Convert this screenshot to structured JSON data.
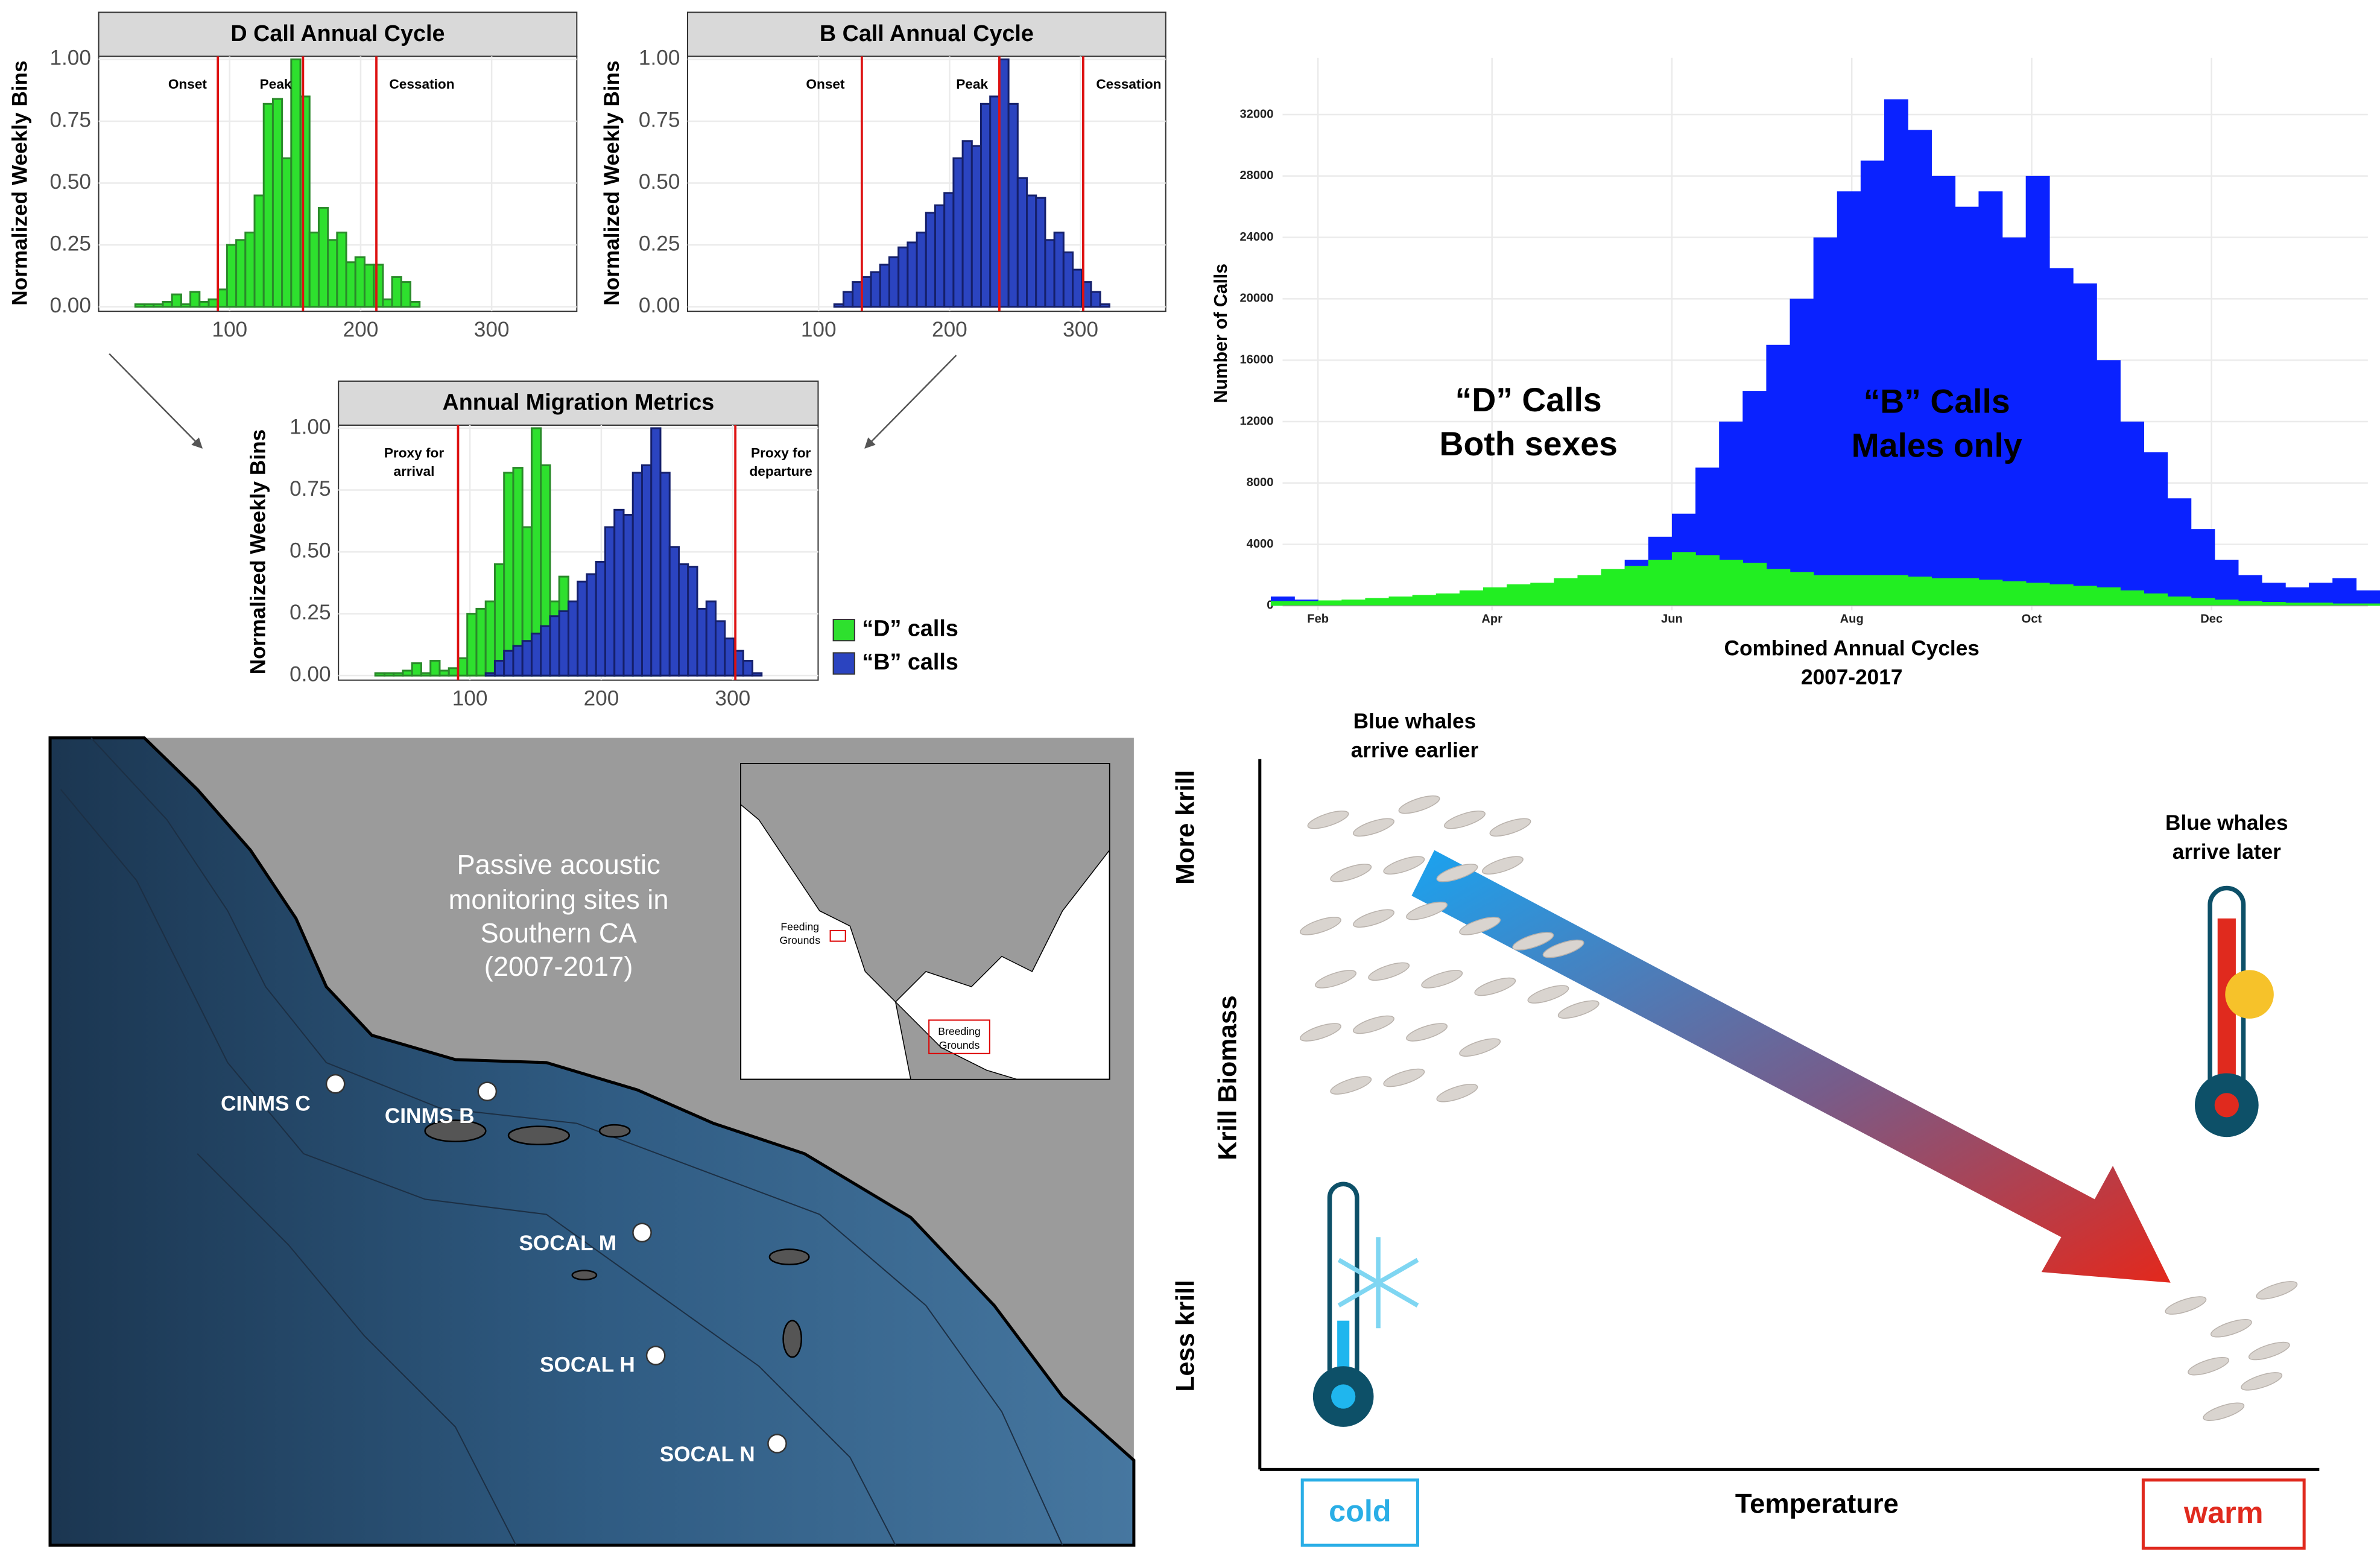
{
  "chart_data": [
    {
      "type": "histogram",
      "title": "D Call Annual Cycle",
      "y_label": "Normalized Weekly Bins",
      "xlim": [
        0,
        365
      ],
      "xticks": [
        100,
        200,
        300
      ],
      "ylim": [
        0,
        1
      ],
      "yticks": [
        {
          "value": 0,
          "label": "0.00"
        },
        {
          "value": 0.25,
          "label": "0.25"
        },
        {
          "value": 0.5,
          "label": "0.50"
        },
        {
          "value": 0.75,
          "label": "0.75"
        },
        {
          "value": 1,
          "label": "1.00"
        }
      ],
      "grid": true,
      "color": "#2ee02e",
      "bins": [
        28,
        35,
        42,
        49,
        56,
        63,
        70,
        77,
        84,
        91,
        98,
        105,
        112,
        119,
        126,
        133,
        140,
        147,
        154,
        161,
        168,
        175,
        182,
        189,
        196,
        203,
        210,
        217,
        224,
        231,
        238,
        245
      ],
      "values": [
        0.01,
        0.01,
        0.01,
        0.02,
        0.05,
        0.01,
        0.06,
        0.02,
        0.03,
        0.07,
        0.25,
        0.27,
        0.3,
        0.45,
        0.82,
        0.84,
        0.6,
        1.0,
        0.85,
        0.3,
        0.4,
        0.27,
        0.3,
        0.18,
        0.2,
        0.17,
        0.17,
        0.03,
        0.12,
        0.1,
        0.02
      ],
      "vlines": [
        {
          "x": 91,
          "label": "Onset"
        },
        {
          "x": 156,
          "label": "Peak"
        },
        {
          "x": 212,
          "label": "Cessation"
        }
      ]
    },
    {
      "type": "histogram",
      "title": "B Call Annual Cycle",
      "y_label": "Normalized Weekly Bins",
      "xlim": [
        0,
        365
      ],
      "xticks": [
        100,
        200,
        300
      ],
      "ylim": [
        0,
        1
      ],
      "yticks": [
        {
          "value": 0,
          "label": "0.00"
        },
        {
          "value": 0.25,
          "label": "0.25"
        },
        {
          "value": 0.5,
          "label": "0.50"
        },
        {
          "value": 0.75,
          "label": "0.75"
        },
        {
          "value": 1,
          "label": "1.00"
        }
      ],
      "grid": true,
      "color": "#2b44c0",
      "bins": [
        112,
        119,
        126,
        133,
        140,
        147,
        154,
        161,
        168,
        175,
        182,
        189,
        196,
        203,
        210,
        217,
        224,
        231,
        238,
        245,
        252,
        259,
        266,
        273,
        280,
        287,
        294,
        301,
        308,
        315,
        322
      ],
      "values": [
        0.01,
        0.06,
        0.1,
        0.12,
        0.14,
        0.17,
        0.2,
        0.24,
        0.26,
        0.3,
        0.38,
        0.41,
        0.46,
        0.6,
        0.67,
        0.65,
        0.82,
        0.85,
        1.0,
        0.82,
        0.52,
        0.45,
        0.44,
        0.27,
        0.3,
        0.22,
        0.15,
        0.1,
        0.06,
        0.01
      ],
      "vlines": [
        {
          "x": 133,
          "label": "Onset"
        },
        {
          "x": 238,
          "label": "Peak"
        },
        {
          "x": 302,
          "label": "Cessation"
        }
      ]
    },
    {
      "type": "histogram",
      "title": "Annual Migration Metrics",
      "y_label": "Normalized Weekly Bins",
      "xlim": [
        0,
        365
      ],
      "xticks": [
        100,
        200,
        300
      ],
      "ylim": [
        0,
        1
      ],
      "yticks": [
        {
          "value": 0,
          "label": "0.00"
        },
        {
          "value": 0.25,
          "label": "0.25"
        },
        {
          "value": 0.5,
          "label": "0.50"
        },
        {
          "value": 0.75,
          "label": "0.75"
        },
        {
          "value": 1,
          "label": "1.00"
        }
      ],
      "grid": true,
      "series": [
        {
          "name": "“D” calls",
          "color": "#2ee02e",
          "bins": [
            28,
            35,
            42,
            49,
            56,
            63,
            70,
            77,
            84,
            91,
            98,
            105,
            112,
            119,
            126,
            133,
            140,
            147,
            154,
            161,
            168,
            175,
            182,
            189,
            196,
            203,
            210,
            217,
            224,
            231,
            238,
            245
          ],
          "values": [
            0.01,
            0.01,
            0.01,
            0.02,
            0.05,
            0.01,
            0.06,
            0.02,
            0.03,
            0.07,
            0.25,
            0.27,
            0.3,
            0.45,
            0.82,
            0.84,
            0.6,
            1.0,
            0.85,
            0.3,
            0.4,
            0.27,
            0.3,
            0.18,
            0.2,
            0.17,
            0.17,
            0.03,
            0.12,
            0.1,
            0.02
          ]
        },
        {
          "name": "“B” calls",
          "color": "#2b44c0",
          "bins": [
            112,
            119,
            126,
            133,
            140,
            147,
            154,
            161,
            168,
            175,
            182,
            189,
            196,
            203,
            210,
            217,
            224,
            231,
            238,
            245,
            252,
            259,
            266,
            273,
            280,
            287,
            294,
            301,
            308,
            315,
            322
          ],
          "values": [
            0.01,
            0.06,
            0.1,
            0.12,
            0.14,
            0.17,
            0.2,
            0.24,
            0.26,
            0.3,
            0.38,
            0.41,
            0.46,
            0.6,
            0.67,
            0.65,
            0.82,
            0.85,
            1.0,
            0.82,
            0.52,
            0.45,
            0.44,
            0.27,
            0.3,
            0.22,
            0.15,
            0.1,
            0.06,
            0.01
          ]
        }
      ],
      "vlines": [
        {
          "x": 91,
          "label": [
            "Proxy for",
            "arrival"
          ]
        },
        {
          "x": 302,
          "label": [
            "Proxy for",
            "departure"
          ]
        }
      ]
    },
    {
      "type": "bar",
      "y_label": "Number of Calls",
      "x_label": [
        "Combined Annual Cycles",
        "2007-2017"
      ],
      "xlim": [
        20,
        388
      ],
      "xticks": [
        {
          "value": 32,
          "label": "Feb"
        },
        {
          "value": 91,
          "label": "Apr"
        },
        {
          "value": 152,
          "label": "Jun"
        },
        {
          "value": 213,
          "label": "Aug"
        },
        {
          "value": 274,
          "label": "Oct"
        },
        {
          "value": 335,
          "label": "Dec"
        }
      ],
      "ylim": [
        0,
        35500
      ],
      "yticks": [
        0,
        4000,
        8000,
        12000,
        16000,
        20000,
        24000,
        28000,
        32000
      ],
      "grid": true,
      "x": [
        20,
        28,
        36,
        44,
        52,
        60,
        68,
        76,
        84,
        92,
        100,
        108,
        116,
        124,
        132,
        140,
        148,
        156,
        164,
        172,
        180,
        188,
        196,
        204,
        212,
        220,
        228,
        236,
        244,
        252,
        260,
        268,
        276,
        284,
        292,
        300,
        308,
        316,
        324,
        332,
        340,
        348,
        356,
        364,
        372,
        380,
        388
      ],
      "series": [
        {
          "color": "#0a22ff",
          "values": [
            600,
            400,
            300,
            300,
            300,
            300,
            300,
            300,
            400,
            500,
            800,
            1000,
            1400,
            1800,
            2300,
            3000,
            4500,
            6000,
            9000,
            12000,
            14000,
            17000,
            20000,
            24000,
            27000,
            29000,
            33000,
            31000,
            28000,
            26000,
            27000,
            24000,
            28000,
            22000,
            21000,
            16000,
            12000,
            10000,
            7000,
            5000,
            3000,
            2000,
            1500,
            1200,
            1500,
            1800,
            1000
          ]
        },
        {
          "color": "#22ee22",
          "values": [
            300,
            300,
            350,
            400,
            500,
            600,
            700,
            800,
            1000,
            1200,
            1400,
            1500,
            1800,
            2000,
            2400,
            2600,
            3000,
            3500,
            3300,
            3000,
            2800,
            2400,
            2200,
            2000,
            2000,
            2000,
            2000,
            1900,
            1800,
            1800,
            1700,
            1600,
            1500,
            1400,
            1300,
            1200,
            1000,
            800,
            600,
            500,
            400,
            300,
            250,
            200,
            200,
            150,
            150
          ]
        }
      ],
      "annotations": [
        [
          "“D” Calls",
          "Both sexes"
        ],
        [
          "“B” Calls",
          "Males only"
        ]
      ]
    }
  ],
  "map": {
    "title": [
      "Passive acoustic",
      "monitoring sites in",
      "Southern CA",
      "(2007-2017)"
    ],
    "sites": [
      "CINMS C",
      "CINMS B",
      "SOCAL M",
      "SOCAL H",
      "SOCAL N"
    ],
    "inset": {
      "feeding": [
        "Feeding",
        "Grounds"
      ],
      "breeding": [
        "Breeding",
        "Grounds"
      ]
    }
  },
  "diagram": {
    "early": [
      "Blue whales",
      "arrive earlier"
    ],
    "late": [
      "Blue whales",
      "arrive later"
    ],
    "y_top": "More krill",
    "y_bottom": "Less krill",
    "y_label": "Krill Biomass",
    "x_label": "Temperature",
    "cold": "cold",
    "warm": "warm"
  }
}
